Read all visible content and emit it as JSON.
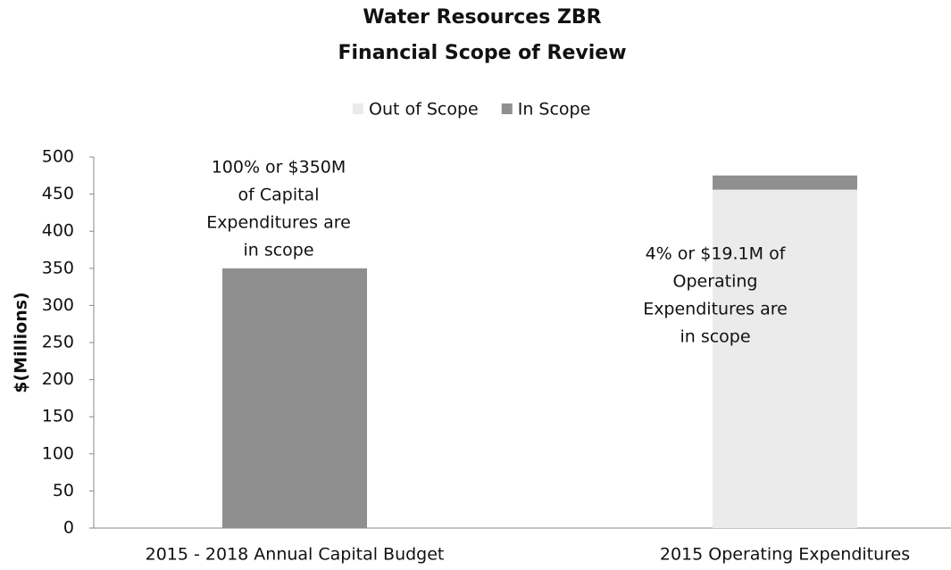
{
  "chart_data": {
    "type": "stacked_bar",
    "title": [
      "Water Resources ZBR",
      "Financial Scope of Review"
    ],
    "y_label": "$(Millions)",
    "categories": [
      "2015 - 2018 Annual Capital Budget",
      "2015 Operating Expenditures"
    ],
    "series": [
      {
        "name": "Out of Scope",
        "color": "#ebebeb",
        "values": [
          0,
          456
        ]
      },
      {
        "name": "In Scope",
        "color": "#8f8f8f",
        "values": [
          350,
          19.1
        ]
      }
    ],
    "ylim": [
      0,
      500
    ],
    "yticks": [
      0,
      50,
      100,
      150,
      200,
      250,
      300,
      350,
      400,
      450,
      500
    ],
    "legend": "top",
    "annotations": [
      [
        "100%  or $350M",
        "of Capital",
        "Expenditures are",
        "in scope"
      ],
      [
        "4%  or $19.1M of",
        "Operating",
        "Expenditures are",
        "in scope"
      ]
    ]
  }
}
